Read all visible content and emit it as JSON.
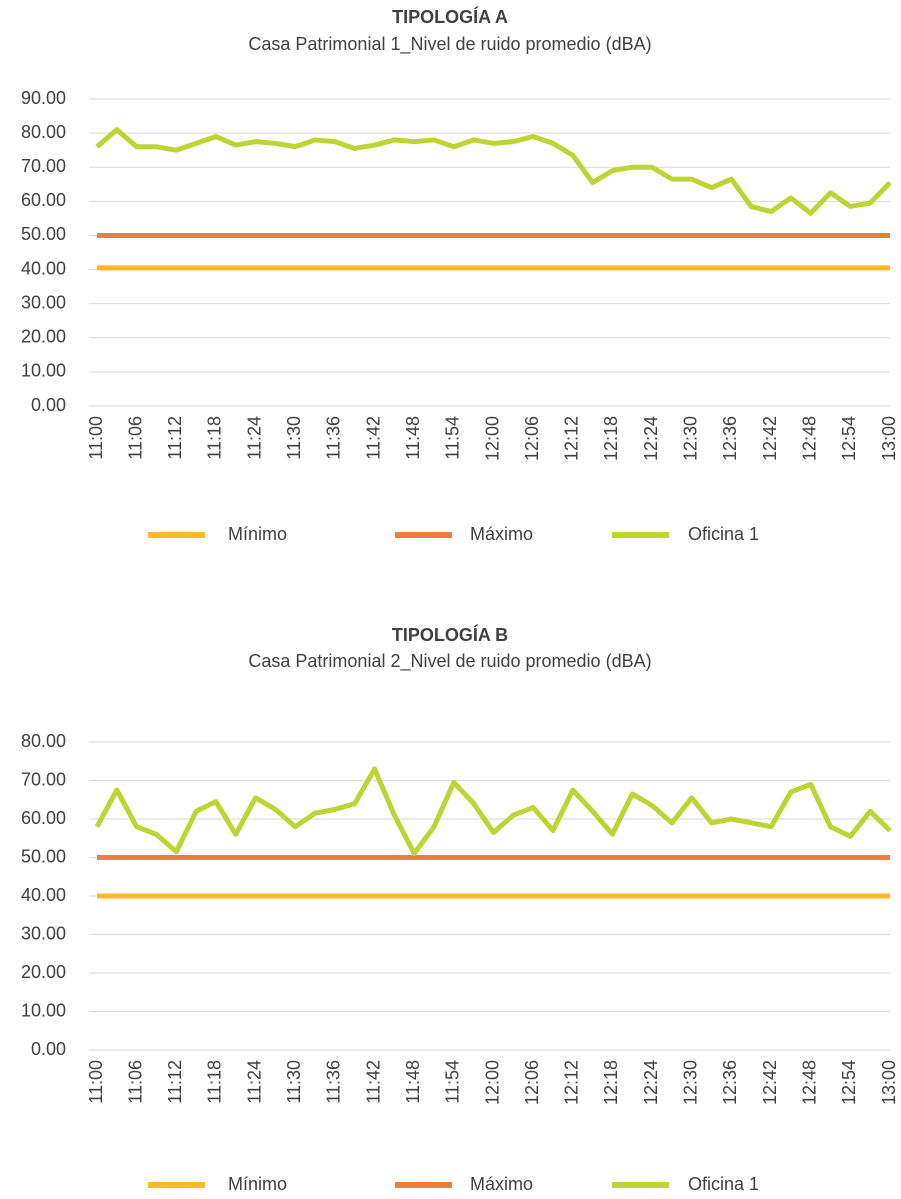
{
  "chart_data": [
    {
      "type": "line",
      "title": "TIPOLOGÍA A",
      "subtitle": "Casa Patrimonial 1_Nivel de ruido promedio (dBA)",
      "categories": [
        "11:00",
        null,
        "11:06",
        null,
        "11:12",
        null,
        "11:18",
        null,
        "11:24",
        null,
        "11:30",
        null,
        "11:36",
        null,
        "11:42",
        null,
        "11:48",
        null,
        "11:54",
        null,
        "12:00",
        null,
        "12:06",
        null,
        "12:12",
        null,
        "12:18",
        null,
        "12:24",
        null,
        "12:30",
        null,
        "12:36",
        null,
        "12:42",
        null,
        "12:48",
        null,
        "12:54",
        null,
        "13:00"
      ],
      "series": [
        {
          "name": "Mínimo",
          "color": "#fbb829",
          "values": [
            40.5,
            40.5,
            40.5,
            40.5,
            40.5,
            40.5,
            40.5,
            40.5,
            40.5,
            40.5,
            40.5,
            40.5,
            40.5,
            40.5,
            40.5,
            40.5,
            40.5,
            40.5,
            40.5,
            40.5,
            40.5,
            40.5,
            40.5,
            40.5,
            40.5,
            40.5,
            40.5,
            40.5,
            40.5,
            40.5,
            40.5,
            40.5,
            40.5,
            40.5,
            40.5,
            40.5,
            40.5,
            40.5,
            40.5,
            40.5,
            40.5
          ]
        },
        {
          "name": "Máximo",
          "color": "#ef7d3c",
          "values": [
            50,
            50,
            50,
            50,
            50,
            50,
            50,
            50,
            50,
            50,
            50,
            50,
            50,
            50,
            50,
            50,
            50,
            50,
            50,
            50,
            50,
            50,
            50,
            50,
            50,
            50,
            50,
            50,
            50,
            50,
            50,
            50,
            50,
            50,
            50,
            50,
            50,
            50,
            50,
            50,
            50
          ]
        },
        {
          "name": "Oficina 1",
          "color": "#bcd533",
          "values": [
            76,
            81,
            76,
            76,
            75,
            77,
            79,
            76.5,
            77.5,
            77,
            76,
            78,
            77.5,
            75.5,
            76.5,
            78,
            77.5,
            78,
            76,
            78,
            77,
            77.5,
            79,
            77,
            73.5,
            65.5,
            69,
            70,
            70,
            66.5,
            66.5,
            64,
            66.5,
            58.5,
            57,
            61,
            56.5,
            62.5,
            58.5,
            59.5,
            65.5
          ]
        }
      ],
      "ylim": [
        0,
        90
      ],
      "yticks": [
        {
          "value": 0,
          "label": "0.00"
        },
        {
          "value": 10,
          "label": "10.00"
        },
        {
          "value": 20,
          "label": "20.00"
        },
        {
          "value": 30,
          "label": "30.00"
        },
        {
          "value": 40,
          "label": "40.00"
        },
        {
          "value": 50,
          "label": "50.00"
        },
        {
          "value": 60,
          "label": "60.00"
        },
        {
          "value": 70,
          "label": "70.00"
        },
        {
          "value": 80,
          "label": "80.00"
        },
        {
          "value": 90,
          "label": "90.00"
        }
      ],
      "grid": true,
      "legend": "bottom"
    },
    {
      "type": "line",
      "title": "TIPOLOGÍA B",
      "subtitle": "Casa Patrimonial 2_Nivel de ruido promedio (dBA)",
      "categories": [
        "11:00",
        null,
        "11:06",
        null,
        "11:12",
        null,
        "11:18",
        null,
        "11:24",
        null,
        "11:30",
        null,
        "11:36",
        null,
        "11:42",
        null,
        "11:48",
        null,
        "11:54",
        null,
        "12:00",
        null,
        "12:06",
        null,
        "12:12",
        null,
        "12:18",
        null,
        "12:24",
        null,
        "12:30",
        null,
        "12:36",
        null,
        "12:42",
        null,
        "12:48",
        null,
        "12:54",
        null,
        "13:00"
      ],
      "series": [
        {
          "name": "Mínimo",
          "color": "#fbb829",
          "values": [
            40,
            40,
            40,
            40,
            40,
            40,
            40,
            40,
            40,
            40,
            40,
            40,
            40,
            40,
            40,
            40,
            40,
            40,
            40,
            40,
            40,
            40,
            40,
            40,
            40,
            40,
            40,
            40,
            40,
            40,
            40,
            40,
            40,
            40,
            40,
            40,
            40,
            40,
            40,
            40,
            40
          ]
        },
        {
          "name": "Máximo",
          "color": "#ef7d3c",
          "values": [
            50,
            50,
            50,
            50,
            50,
            50,
            50,
            50,
            50,
            50,
            50,
            50,
            50,
            50,
            50,
            50,
            50,
            50,
            50,
            50,
            50,
            50,
            50,
            50,
            50,
            50,
            50,
            50,
            50,
            50,
            50,
            50,
            50,
            50,
            50,
            50,
            50,
            50,
            50,
            50,
            50
          ]
        },
        {
          "name": "Oficina 1",
          "color": "#bcd533",
          "values": [
            58,
            67.5,
            58,
            56,
            51.5,
            62,
            64.5,
            56,
            65.5,
            62.5,
            58,
            61.5,
            62.5,
            64,
            73,
            61,
            51,
            58,
            69.5,
            64,
            56.5,
            61,
            63,
            57,
            67.5,
            62,
            56,
            66.5,
            63.5,
            59,
            65.5,
            59,
            60,
            59,
            58,
            67,
            69,
            58,
            55.5,
            62,
            57
          ]
        }
      ],
      "ylim": [
        0,
        80
      ],
      "yticks": [
        {
          "value": 0,
          "label": "0.00"
        },
        {
          "value": 10,
          "label": "10.00"
        },
        {
          "value": 20,
          "label": "20.00"
        },
        {
          "value": 30,
          "label": "30.00"
        },
        {
          "value": 40,
          "label": "40.00"
        },
        {
          "value": 50,
          "label": "50.00"
        },
        {
          "value": 60,
          "label": "60.00"
        },
        {
          "value": 70,
          "label": "70.00"
        },
        {
          "value": 80,
          "label": "80.00"
        }
      ],
      "grid": true,
      "legend": "bottom"
    }
  ]
}
